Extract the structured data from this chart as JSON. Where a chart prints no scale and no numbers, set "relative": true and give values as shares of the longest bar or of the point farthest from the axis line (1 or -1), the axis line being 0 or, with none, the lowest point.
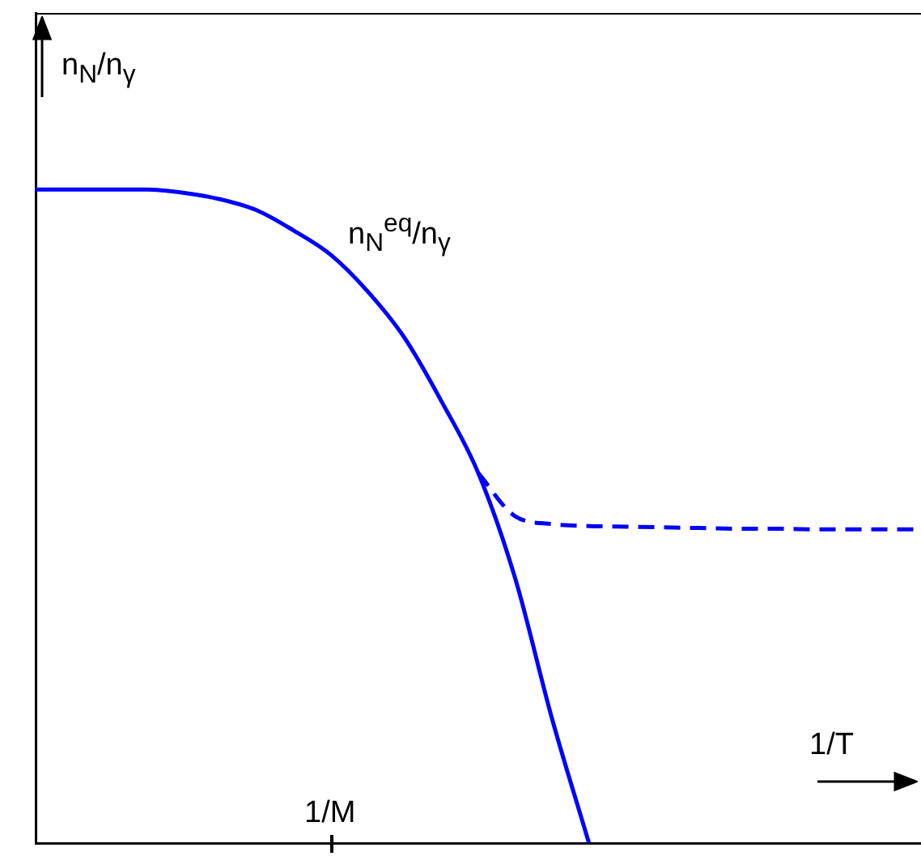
{
  "chart_data": {
    "type": "line",
    "relative": true,
    "ylabel": "n$_{N}$/n$_{γ}$",
    "xlabel": "1/T",
    "marker": "none",
    "annotations": [
      "1/M"
    ],
    "categories": [
      null,
      null,
      null,
      null,
      null,
      null,
      null,
      null,
      null,
      null,
      null,
      null,
      null,
      null,
      null,
      null,
      null,
      null,
      null,
      null,
      null,
      null,
      null,
      null,
      null
    ],
    "series": [
      {
        "name": "n$_{N}$$^{eq}$/n$_{γ}$",
        "color": "#0000ff",
        "line_style": "solid",
        "values": [
          1,
          1,
          1,
          1,
          0.995,
          0.985,
          0.968,
          0.937,
          0.9,
          0.844,
          0.773,
          0.676,
          0.566,
          0.405,
          0.19,
          0,
          null,
          null,
          null,
          null,
          null,
          null,
          null,
          null,
          null
        ]
      },
      {
        "color": "#0000ff",
        "line_style": "dashed",
        "values": [
          null,
          null,
          null,
          null,
          null,
          null,
          null,
          null,
          null,
          null,
          null,
          null,
          0.566,
          0.5,
          0.488,
          0.485,
          0.484,
          0.483,
          0.482,
          0.481,
          0.481,
          0.48,
          0.48,
          0.48,
          0.48
        ]
      }
    ]
  }
}
